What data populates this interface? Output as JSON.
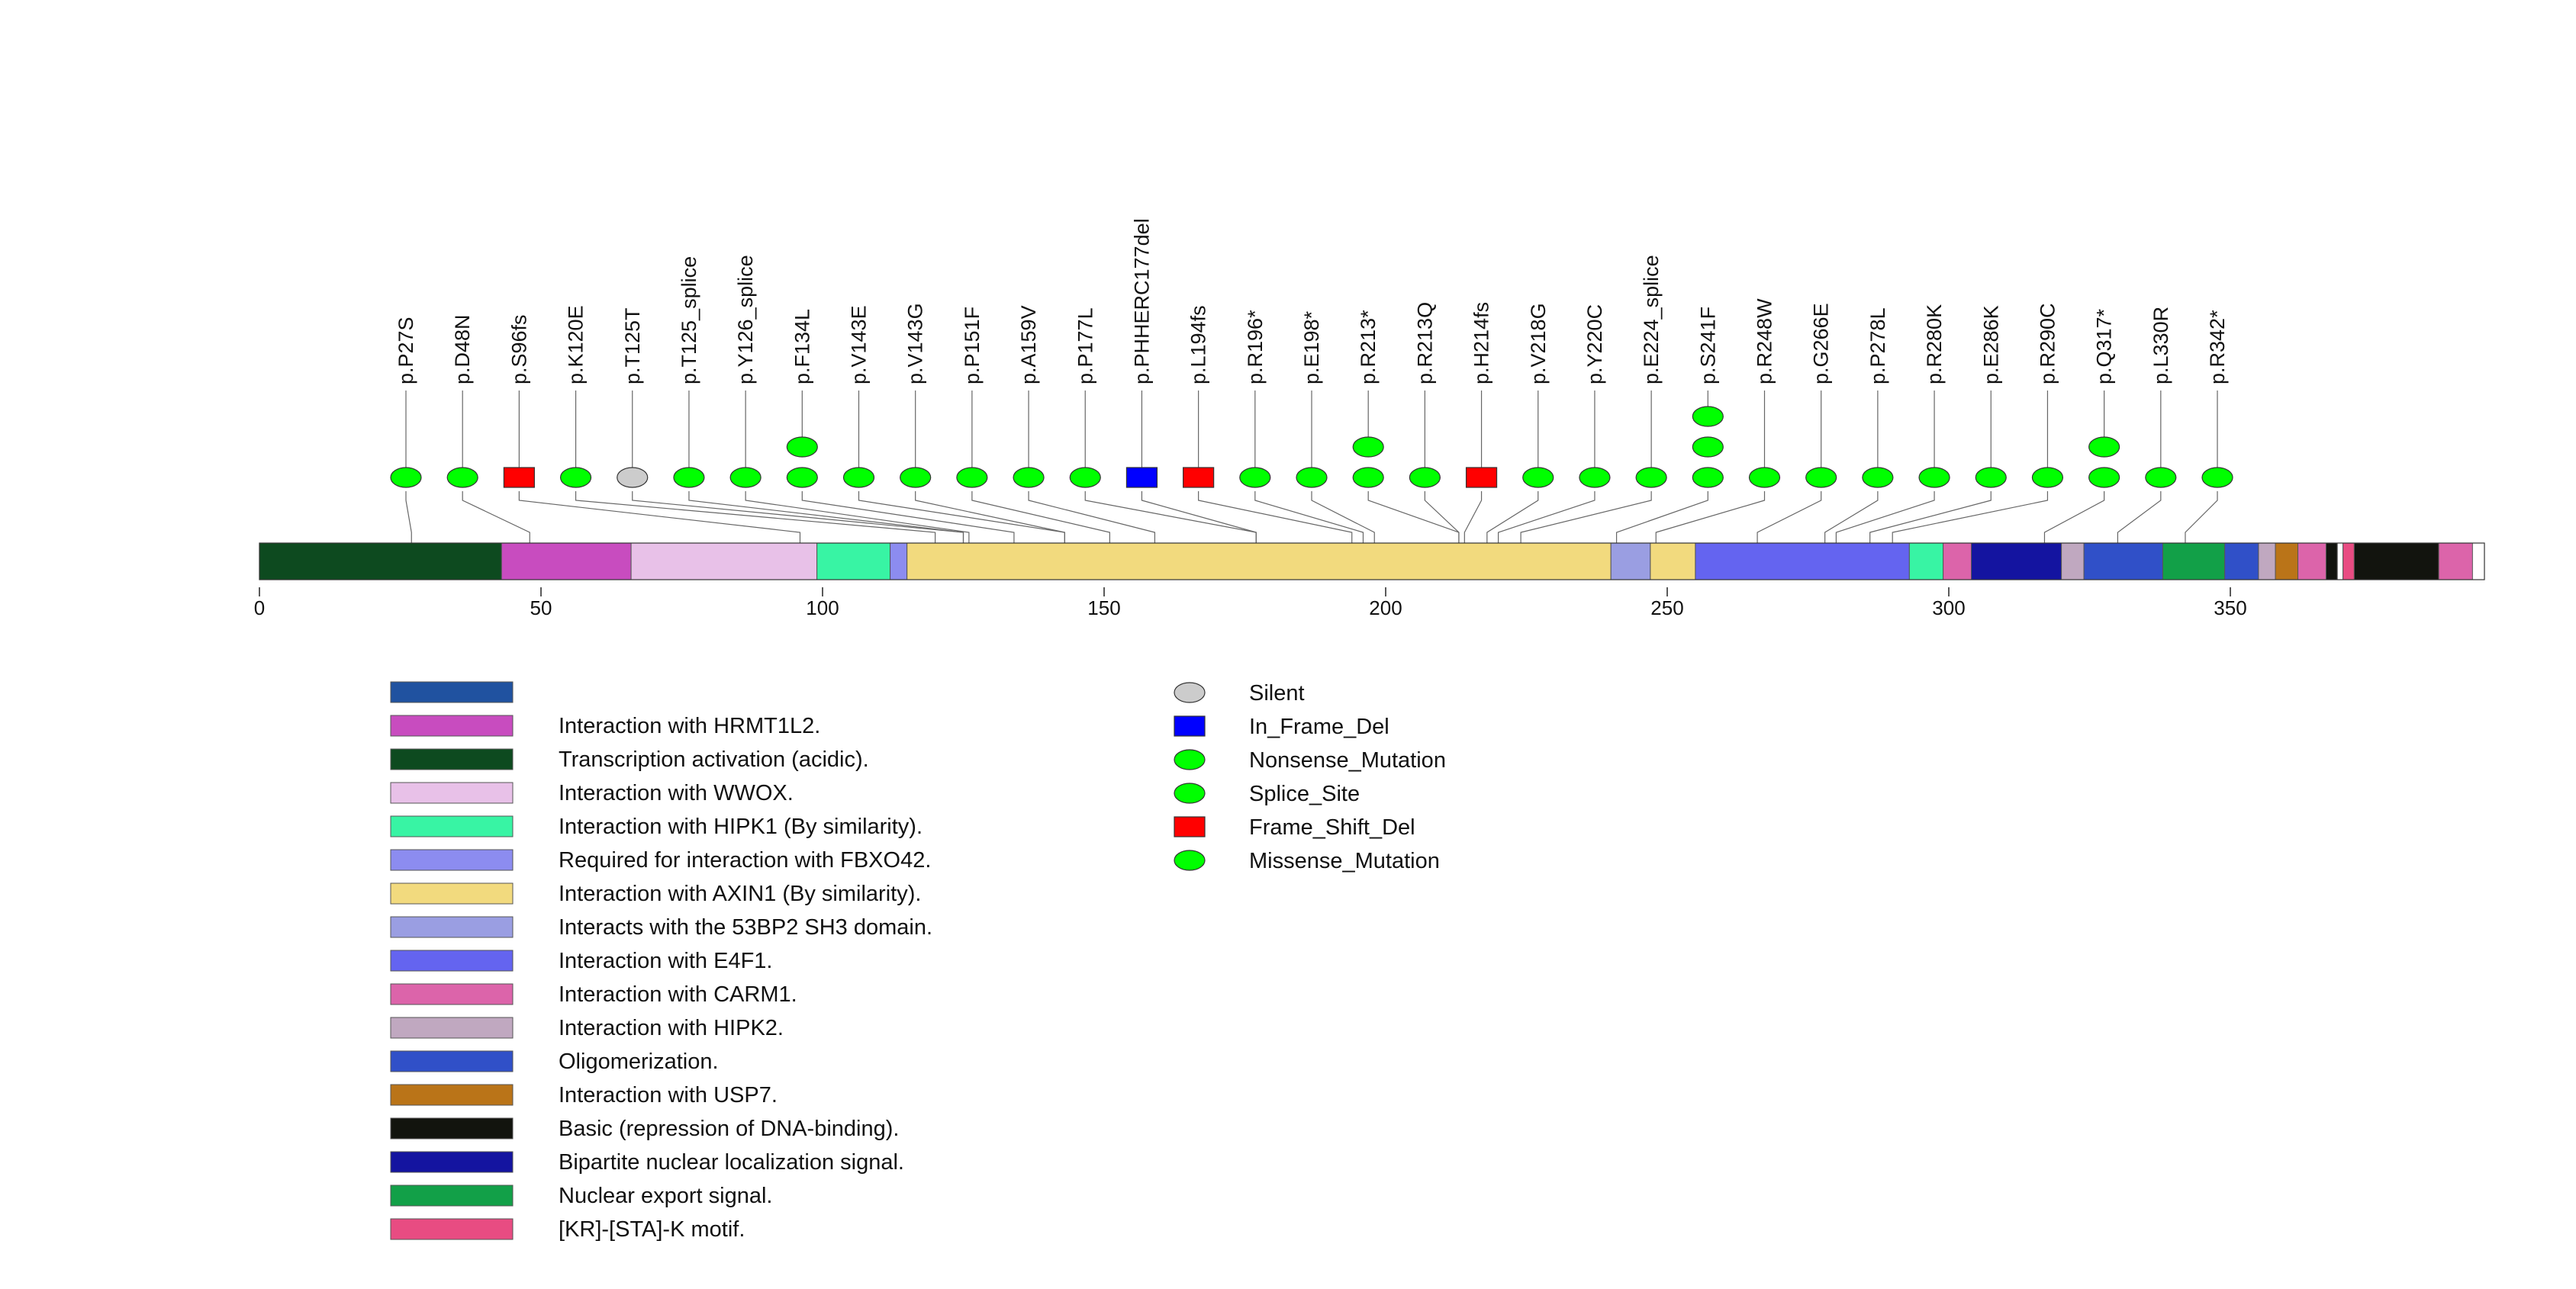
{
  "chart_data": {
    "type": "lollipop",
    "title": "",
    "axis": {
      "min": 0,
      "max": 393,
      "ticks": [
        0,
        50,
        100,
        150,
        200,
        250,
        300,
        350
      ],
      "tick_labels": [
        "0",
        "50",
        "100",
        "150",
        "200",
        "250",
        "300",
        "350"
      ]
    },
    "protein_length": 393,
    "domains": [
      {
        "start": 0,
        "end": 43,
        "color": "#0d4a1f",
        "legend": "Transcription activation (acidic)."
      },
      {
        "start": 43,
        "end": 66,
        "color": "#c84cbf",
        "legend": "Interaction with HRMT1L2."
      },
      {
        "start": 66,
        "end": 99,
        "color": "#e8c1e8",
        "legend": "Interaction with WWOX."
      },
      {
        "start": 99,
        "end": 112,
        "color": "#38f4a4",
        "legend": "Interaction with HIPK1 (By similarity)."
      },
      {
        "start": 112,
        "end": 115,
        "color": "#8c8cf0",
        "legend": "Required for interaction with FBXO42."
      },
      {
        "start": 115,
        "end": 240,
        "color": "#f2da7e",
        "legend": "Interaction with AXIN1 (By similarity)."
      },
      {
        "start": 240,
        "end": 247,
        "color": "#9a9ee2",
        "legend": "Interacts with the 53BP2 SH3 domain."
      },
      {
        "start": 247,
        "end": 255,
        "color": "#f2da7e",
        "legend": "Interaction with AXIN1 (By similarity)."
      },
      {
        "start": 255,
        "end": 293,
        "color": "#6464f0",
        "legend": "Interaction with E4F1."
      },
      {
        "start": 293,
        "end": 299,
        "color": "#38f4a4",
        "legend": "Interaction with HIPK1 (By similarity)."
      },
      {
        "start": 299,
        "end": 304,
        "color": "#dc64aa",
        "legend": "Interaction with CARM1."
      },
      {
        "start": 304,
        "end": 320,
        "color": "#1414a0",
        "legend": "Bipartite nuclear localization signal."
      },
      {
        "start": 320,
        "end": 324,
        "color": "#c0a8c0",
        "legend": "Interaction with HIPK2."
      },
      {
        "start": 324,
        "end": 338,
        "color": "#3050c8",
        "legend": "Oligomerization."
      },
      {
        "start": 338,
        "end": 349,
        "color": "#12a048",
        "legend": "Nuclear export signal."
      },
      {
        "start": 349,
        "end": 355,
        "color": "#3050c8",
        "legend": "Oligomerization."
      },
      {
        "start": 355,
        "end": 358,
        "color": "#c0a8c0",
        "legend": "Interaction with HIPK2."
      },
      {
        "start": 358,
        "end": 362,
        "color": "#ba7418",
        "legend": "Interaction with USP7."
      },
      {
        "start": 362,
        "end": 367,
        "color": "#dc64aa",
        "legend": "Interaction with CARM1."
      },
      {
        "start": 367,
        "end": 369,
        "color": "#12140e",
        "legend": "Basic (repression of DNA-binding)."
      },
      {
        "start": 369,
        "end": 370,
        "color": "#ffffff",
        "legend": ""
      },
      {
        "start": 370,
        "end": 372,
        "color": "#e84c82",
        "legend": "[KR]-[STA]-K motif."
      },
      {
        "start": 372,
        "end": 387,
        "color": "#12140e",
        "legend": "Basic (repression of DNA-binding)."
      },
      {
        "start": 387,
        "end": 393,
        "color": "#dc64aa",
        "legend": "Interaction with CARM1."
      }
    ],
    "mutations": [
      {
        "label": "p.P27S",
        "position": 27,
        "count": 1,
        "type": "Missense_Mutation"
      },
      {
        "label": "p.D48N",
        "position": 48,
        "count": 1,
        "type": "Missense_Mutation"
      },
      {
        "label": "p.S96fs",
        "position": 96,
        "count": 1,
        "type": "Frame_Shift_Del"
      },
      {
        "label": "p.K120E",
        "position": 120,
        "count": 1,
        "type": "Missense_Mutation"
      },
      {
        "label": "p.T125T",
        "position": 125,
        "count": 1,
        "type": "Silent"
      },
      {
        "label": "p.T125_splice",
        "position": 125,
        "count": 1,
        "type": "Splice_Site"
      },
      {
        "label": "p.Y126_splice",
        "position": 126,
        "count": 1,
        "type": "Splice_Site"
      },
      {
        "label": "p.F134L",
        "position": 134,
        "count": 2,
        "type": "Missense_Mutation"
      },
      {
        "label": "p.V143E",
        "position": 143,
        "count": 1,
        "type": "Missense_Mutation"
      },
      {
        "label": "p.V143G",
        "position": 143,
        "count": 1,
        "type": "Missense_Mutation"
      },
      {
        "label": "p.P151F",
        "position": 151,
        "count": 1,
        "type": "Missense_Mutation"
      },
      {
        "label": "p.A159V",
        "position": 159,
        "count": 1,
        "type": "Missense_Mutation"
      },
      {
        "label": "p.P177L",
        "position": 177,
        "count": 1,
        "type": "Missense_Mutation"
      },
      {
        "label": "p.PHHERC177del",
        "position": 177,
        "count": 1,
        "type": "In_Frame_Del"
      },
      {
        "label": "p.L194fs",
        "position": 194,
        "count": 1,
        "type": "Frame_Shift_Del"
      },
      {
        "label": "p.R196*",
        "position": 196,
        "count": 1,
        "type": "Nonsense_Mutation"
      },
      {
        "label": "p.E198*",
        "position": 198,
        "count": 1,
        "type": "Nonsense_Mutation"
      },
      {
        "label": "p.R213*",
        "position": 213,
        "count": 2,
        "type": "Nonsense_Mutation"
      },
      {
        "label": "p.R213Q",
        "position": 213,
        "count": 1,
        "type": "Missense_Mutation"
      },
      {
        "label": "p.H214fs",
        "position": 214,
        "count": 1,
        "type": "Frame_Shift_Del"
      },
      {
        "label": "p.V218G",
        "position": 218,
        "count": 1,
        "type": "Missense_Mutation"
      },
      {
        "label": "p.Y220C",
        "position": 220,
        "count": 1,
        "type": "Missense_Mutation"
      },
      {
        "label": "p.E224_splice",
        "position": 224,
        "count": 1,
        "type": "Splice_Site"
      },
      {
        "label": "p.S241F",
        "position": 241,
        "count": 3,
        "type": "Missense_Mutation"
      },
      {
        "label": "p.R248W",
        "position": 248,
        "count": 1,
        "type": "Missense_Mutation"
      },
      {
        "label": "p.G266E",
        "position": 266,
        "count": 1,
        "type": "Missense_Mutation"
      },
      {
        "label": "p.P278L",
        "position": 278,
        "count": 1,
        "type": "Missense_Mutation"
      },
      {
        "label": "p.R280K",
        "position": 280,
        "count": 1,
        "type": "Missense_Mutation"
      },
      {
        "label": "p.E286K",
        "position": 286,
        "count": 1,
        "type": "Missense_Mutation"
      },
      {
        "label": "p.R290C",
        "position": 290,
        "count": 1,
        "type": "Missense_Mutation"
      },
      {
        "label": "p.Q317*",
        "position": 317,
        "count": 2,
        "type": "Nonsense_Mutation"
      },
      {
        "label": "p.L330R",
        "position": 330,
        "count": 1,
        "type": "Missense_Mutation"
      },
      {
        "label": "p.R342*",
        "position": 342,
        "count": 1,
        "type": "Nonsense_Mutation"
      }
    ],
    "domain_legend": [
      {
        "label": "",
        "color": "#2052a0"
      },
      {
        "label": "Interaction with HRMT1L2.",
        "color": "#c84cbf"
      },
      {
        "label": "Transcription activation (acidic).",
        "color": "#0d4a1f"
      },
      {
        "label": "Interaction with WWOX.",
        "color": "#e8c1e8"
      },
      {
        "label": "Interaction with HIPK1 (By similarity).",
        "color": "#38f4a4"
      },
      {
        "label": "Required for interaction with FBXO42.",
        "color": "#8c8cf0"
      },
      {
        "label": "Interaction with AXIN1 (By similarity).",
        "color": "#f2da7e"
      },
      {
        "label": "Interacts with the 53BP2 SH3 domain.",
        "color": "#9a9ee2"
      },
      {
        "label": "Interaction with E4F1.",
        "color": "#6464f0"
      },
      {
        "label": "Interaction with CARM1.",
        "color": "#dc64aa"
      },
      {
        "label": "Interaction with HIPK2.",
        "color": "#c0a8c0"
      },
      {
        "label": "Oligomerization.",
        "color": "#3050c8"
      },
      {
        "label": "Interaction with USP7.",
        "color": "#ba7418"
      },
      {
        "label": "Basic (repression of DNA-binding).",
        "color": "#12140e"
      },
      {
        "label": "Bipartite nuclear localization signal.",
        "color": "#1414a0"
      },
      {
        "label": "Nuclear export signal.",
        "color": "#12a048"
      },
      {
        "label": "[KR]-[STA]-K motif.",
        "color": "#e84c82"
      }
    ],
    "mutation_legend": [
      {
        "label": "Silent",
        "shape": "ellipse",
        "color": "#cccccc"
      },
      {
        "label": "In_Frame_Del",
        "shape": "rect",
        "color": "#0000ff"
      },
      {
        "label": "Nonsense_Mutation",
        "shape": "ellipse",
        "color": "#00ff00"
      },
      {
        "label": "Splice_Site",
        "shape": "ellipse",
        "color": "#00ff00"
      },
      {
        "label": "Frame_Shift_Del",
        "shape": "rect",
        "color": "#ff0000"
      },
      {
        "label": "Missense_Mutation",
        "shape": "ellipse",
        "color": "#00ff00"
      }
    ],
    "colors": {
      "Silent": "#cccccc",
      "In_Frame_Del": "#0000ff",
      "Nonsense_Mutation": "#00ff00",
      "Splice_Site": "#00ff00",
      "Frame_Shift_Del": "#ff0000",
      "Missense_Mutation": "#00ff00"
    }
  }
}
